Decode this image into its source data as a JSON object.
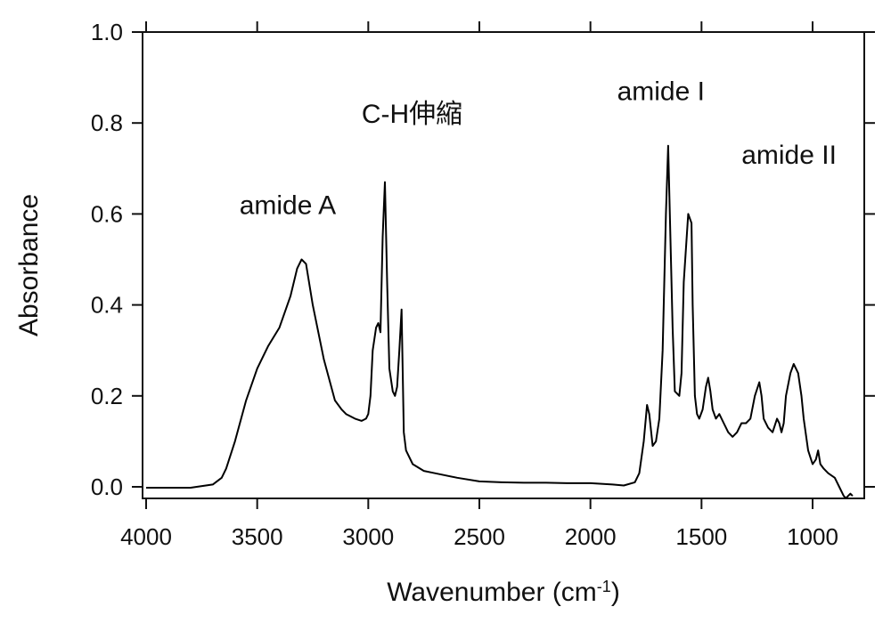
{
  "chart_data": {
    "type": "line",
    "xlabel": "Wavenumber (cm",
    "xlabel_sup": "-1",
    "xlabel_close": ")",
    "ylabel": "Absorbance",
    "xlim": [
      4000,
      820
    ],
    "ylim": [
      -0.02,
      1.0
    ],
    "x_ticks": [
      4000,
      3500,
      3000,
      2500,
      2000,
      1500,
      1000
    ],
    "y_ticks": [
      0.0,
      0.2,
      0.4,
      0.6,
      0.8,
      1.0
    ],
    "x_tick_labels": [
      "4000",
      "3500",
      "3000",
      "2500",
      "2000",
      "1500",
      "1000"
    ],
    "y_tick_labels": [
      "0.0",
      "0.2",
      "0.4",
      "0.6",
      "0.8",
      "1.0"
    ],
    "grid": false,
    "annotations": [
      {
        "text": "amide A",
        "x": 3580,
        "y": 0.6
      },
      {
        "text": "C-H伸縮",
        "x": 3030,
        "y": 0.8
      },
      {
        "text": "amide I",
        "x": 1880,
        "y": 0.85
      },
      {
        "text": "amide II",
        "x": 1320,
        "y": 0.71
      }
    ],
    "series": [
      {
        "color": "#000000",
        "x": [
          4000,
          3800,
          3700,
          3660,
          3640,
          3600,
          3550,
          3500,
          3450,
          3400,
          3350,
          3320,
          3300,
          3280,
          3250,
          3200,
          3150,
          3120,
          3100,
          3060,
          3030,
          3010,
          3000,
          2990,
          2980,
          2965,
          2955,
          2945,
          2935,
          2925,
          2915,
          2905,
          2890,
          2880,
          2870,
          2860,
          2850,
          2845,
          2840,
          2830,
          2800,
          2750,
          2700,
          2600,
          2500,
          2400,
          2300,
          2200,
          2100,
          2000,
          1900,
          1850,
          1800,
          1780,
          1760,
          1745,
          1735,
          1720,
          1705,
          1690,
          1675,
          1660,
          1650,
          1640,
          1630,
          1620,
          1600,
          1590,
          1580,
          1560,
          1545,
          1540,
          1530,
          1520,
          1510,
          1495,
          1480,
          1470,
          1460,
          1450,
          1435,
          1420,
          1400,
          1380,
          1360,
          1340,
          1320,
          1300,
          1280,
          1260,
          1240,
          1230,
          1220,
          1200,
          1180,
          1160,
          1150,
          1140,
          1130,
          1120,
          1100,
          1085,
          1075,
          1065,
          1050,
          1040,
          1020,
          1000,
          985,
          975,
          965,
          950,
          930,
          900,
          880,
          860,
          850,
          840,
          830,
          820
        ],
        "y": [
          -0.002,
          -0.002,
          0.005,
          0.02,
          0.04,
          0.1,
          0.19,
          0.26,
          0.31,
          0.35,
          0.42,
          0.48,
          0.5,
          0.49,
          0.4,
          0.28,
          0.19,
          0.17,
          0.16,
          0.15,
          0.145,
          0.15,
          0.16,
          0.2,
          0.3,
          0.35,
          0.36,
          0.34,
          0.55,
          0.67,
          0.45,
          0.26,
          0.21,
          0.2,
          0.22,
          0.3,
          0.39,
          0.25,
          0.12,
          0.08,
          0.05,
          0.035,
          0.03,
          0.02,
          0.012,
          0.01,
          0.009,
          0.009,
          0.008,
          0.008,
          0.005,
          0.003,
          0.01,
          0.03,
          0.1,
          0.18,
          0.16,
          0.09,
          0.1,
          0.15,
          0.3,
          0.6,
          0.75,
          0.55,
          0.35,
          0.21,
          0.2,
          0.25,
          0.45,
          0.6,
          0.58,
          0.4,
          0.2,
          0.16,
          0.15,
          0.17,
          0.22,
          0.24,
          0.21,
          0.17,
          0.15,
          0.16,
          0.14,
          0.12,
          0.11,
          0.12,
          0.14,
          0.14,
          0.15,
          0.2,
          0.23,
          0.2,
          0.15,
          0.13,
          0.12,
          0.15,
          0.14,
          0.12,
          0.14,
          0.2,
          0.25,
          0.27,
          0.26,
          0.25,
          0.2,
          0.15,
          0.08,
          0.05,
          0.06,
          0.08,
          0.05,
          0.04,
          0.03,
          0.02,
          0.0,
          -0.02,
          -0.025,
          -0.02,
          -0.015,
          -0.02
        ]
      }
    ]
  }
}
